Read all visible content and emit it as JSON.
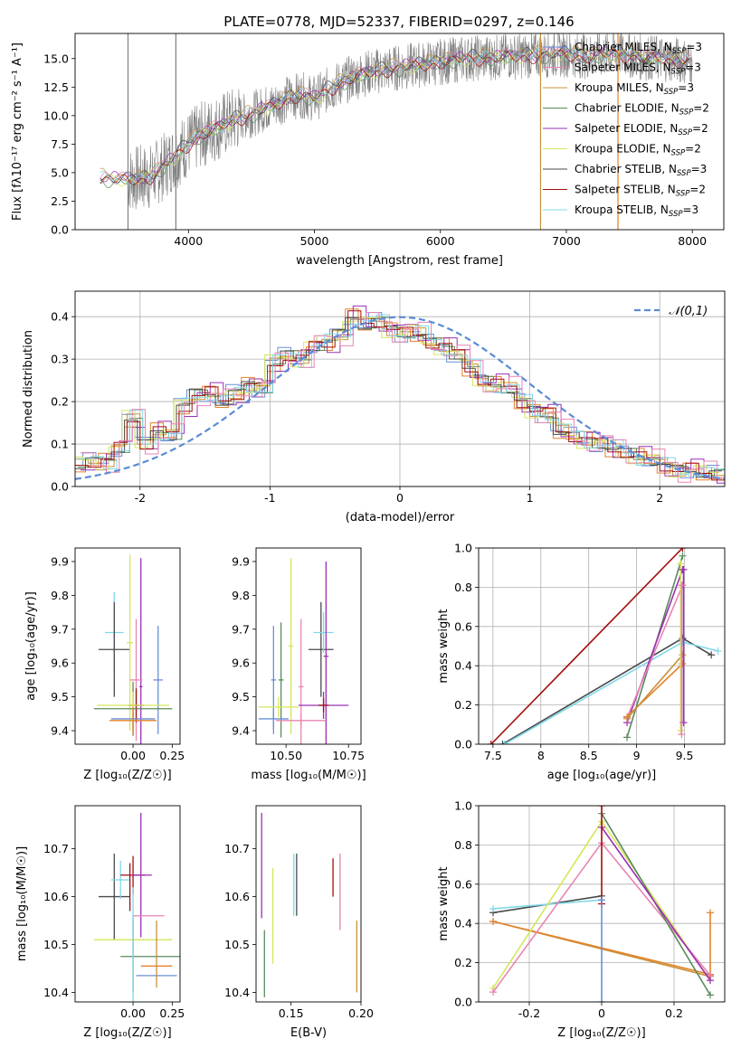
{
  "figure": {
    "title": "PLATE=0778, MJD=52337, FIBERID=0297, z=0.146"
  },
  "colors": {
    "Chabrier MILES": "#6a8fd6",
    "Salpeter MILES": "#e3822a",
    "Kroupa MILES": "#c8913b",
    "Chabrier ELODIE": "#5b8a5b",
    "Salpeter ELODIE": "#9a31b5",
    "Kroupa ELODIE": "#d6e65a",
    "Chabrier STELIB": "#4a4a4a",
    "Salpeter STELIB": "#a30e0e",
    "Kroupa STELIB": "#7fd8e8",
    "Salpeter MILES pink": "#e884b3",
    "Kroupa ELODIE light": "#c7ec6a",
    "data": "#808080",
    "normal": "#5b8bd6",
    "grid": "#b0b0b0"
  },
  "chart_data": [
    {
      "id": "spectrum",
      "type": "line",
      "xlabel": "wavelength [Angstrom, rest frame]",
      "ylabel": "Flux [f$_\\lambda$10$^{-17}$ erg cm$^{-2}$ s$^{-1}$ A$^{-1}$]",
      "ylabel_text": "Flux [fλ10⁻¹⁷ erg cm⁻² s⁻¹ A⁻¹]",
      "xlim": [
        3100,
        8250
      ],
      "ylim": [
        0,
        17.2
      ],
      "xticks": [
        4000,
        5000,
        6000,
        7000,
        8000
      ],
      "yticks": [
        0.0,
        2.5,
        5.0,
        7.5,
        10.0,
        12.5,
        15.0
      ],
      "legend": [
        {
          "name": "Chabrier MILES, N",
          "sub": "SSP",
          "tail": "=3",
          "color": "#6a8fd6"
        },
        {
          "name": "Salpeter MILES, N",
          "sub": "SSP",
          "tail": "=3",
          "color": "#e884b3"
        },
        {
          "name": "Kroupa MILES, N",
          "sub": "SSP",
          "tail": "=3",
          "color": "#c8913b"
        },
        {
          "name": "Chabrier ELODIE, N",
          "sub": "SSP",
          "tail": "=2",
          "color": "#5b8a5b"
        },
        {
          "name": "Salpeter ELODIE, N",
          "sub": "SSP",
          "tail": "=2",
          "color": "#9a31b5"
        },
        {
          "name": "Kroupa ELODIE, N",
          "sub": "SSP",
          "tail": "=2",
          "color": "#d6e65a"
        },
        {
          "name": "Chabrier STELIB, N",
          "sub": "SSP",
          "tail": "=3",
          "color": "#4a4a4a"
        },
        {
          "name": "Salpeter STELIB, N",
          "sub": "SSP",
          "tail": "=2",
          "color": "#a30e0e"
        },
        {
          "name": "Kroupa STELIB, N",
          "sub": "SSP",
          "tail": "=3",
          "color": "#7fd8e8"
        }
      ],
      "legend_placement": "top-right",
      "model_continuum": {
        "x": [
          3300,
          3500,
          3700,
          3800,
          3900,
          4000,
          4100,
          4200,
          4300,
          4400,
          4500,
          4600,
          4700,
          4800,
          4900,
          5000,
          5100,
          5200,
          5300,
          5400,
          5600,
          5800,
          6000,
          6200,
          6400,
          6600,
          6800,
          7000,
          7200,
          7400,
          7600,
          7800,
          8000
        ],
        "y": [
          4.5,
          4.4,
          4.6,
          5.5,
          6.5,
          7.5,
          8.3,
          8.8,
          9.3,
          9.8,
          10.1,
          10.6,
          11.0,
          11.6,
          11.8,
          11.5,
          12.2,
          12.8,
          13.3,
          13.7,
          14.1,
          14.4,
          14.7,
          15.0,
          15.1,
          15.2,
          15.3,
          15.4,
          15.2,
          15.5,
          15.1,
          15.0,
          14.7
        ]
      },
      "noise_amplitude": 2.3,
      "model_offsets": [
        0.0,
        0.15,
        0.3,
        -0.2,
        0.1,
        -0.1,
        0.2,
        -0.15,
        0.05
      ],
      "gap_lines": [
        {
          "x": 3520,
          "color": "#808080"
        },
        {
          "x": 3900,
          "color": "#808080"
        },
        {
          "x": 6795,
          "color": "#c8913b"
        },
        {
          "x": 7410,
          "color": "#e3822a"
        }
      ]
    },
    {
      "id": "residuals",
      "type": "histogram",
      "xlabel": "(data-model)/error",
      "ylabel": "Normed distribution",
      "xlim": [
        -2.5,
        2.5
      ],
      "ylim": [
        0,
        0.46
      ],
      "xticks": [
        -2,
        -1,
        0,
        1,
        2
      ],
      "yticks": [
        0.0,
        0.1,
        0.2,
        0.3,
        0.4
      ],
      "grid": true,
      "legend_placement": "top-right",
      "normal_label": "𝒩(0,1)",
      "bin_edges_start": -2.5,
      "bin_width": 0.1,
      "base_series": [
        0.05,
        0.06,
        0.06,
        0.09,
        0.16,
        0.1,
        0.13,
        0.12,
        0.19,
        0.22,
        0.22,
        0.2,
        0.22,
        0.24,
        0.23,
        0.29,
        0.31,
        0.3,
        0.33,
        0.34,
        0.36,
        0.4,
        0.38,
        0.39,
        0.37,
        0.36,
        0.36,
        0.34,
        0.33,
        0.31,
        0.28,
        0.25,
        0.24,
        0.23,
        0.2,
        0.18,
        0.17,
        0.13,
        0.12,
        0.11,
        0.1,
        0.09,
        0.08,
        0.07,
        0.06,
        0.05,
        0.04,
        0.04,
        0.03,
        0.03
      ],
      "series_colors": [
        "#6a8fd6",
        "#e3822a",
        "#c8913b",
        "#5b8a5b",
        "#9a31b5",
        "#d6e65a",
        "#4a4a4a",
        "#a30e0e",
        "#7fd8e8",
        "#e884b3"
      ],
      "series_jitter": [
        0.02,
        -0.02,
        0.015,
        -0.01,
        0.025,
        -0.02,
        0.01,
        -0.015,
        0.02,
        0.03
      ]
    },
    {
      "id": "age-vs-Z",
      "type": "scatter",
      "xlabel": "Z [log₁₀(Z/Z☉)]",
      "ylabel": "age  [log₁₀(age/yr)]",
      "xlim": [
        -0.37,
        0.3
      ],
      "ylim": [
        9.36,
        9.94
      ],
      "xticks": [
        0.0,
        0.25
      ],
      "xticklabels": [
        "0.00",
        "0.25"
      ],
      "yticks": [
        9.4,
        9.5,
        9.6,
        9.7,
        9.8,
        9.9
      ],
      "points": [
        {
          "x": -0.12,
          "y": 9.69,
          "xerr": 0.06,
          "yerr": 0.12,
          "color": "#7fd8e8"
        },
        {
          "x": -0.12,
          "y": 9.64,
          "xerr": 0.1,
          "yerr": 0.14,
          "color": "#4a4a4a"
        },
        {
          "x": -0.02,
          "y": 9.66,
          "xerr": 0.02,
          "yerr": 0.26,
          "color": "#d6e65a"
        },
        {
          "x": 0.05,
          "y": 9.53,
          "xerr": 0.01,
          "yerr": 0.38,
          "color": "#9a31b5"
        },
        {
          "x": 0.02,
          "y": 9.55,
          "xerr": 0.04,
          "yerr": 0.18,
          "color": "#e884b3"
        },
        {
          "x": 0.16,
          "y": 9.55,
          "xerr": 0.03,
          "yerr": 0.16,
          "color": "#6a8fd6"
        },
        {
          "x": 0.02,
          "y": 9.475,
          "xerr": 0.05,
          "yerr": 0.05,
          "color": "#a30e0e"
        },
        {
          "x": 0.0,
          "y": 9.465,
          "xerr": 0.25,
          "yerr": 0.08,
          "color": "#5b8a5b"
        },
        {
          "x": 0.0,
          "y": 9.475,
          "xerr": 0.23,
          "yerr": 0.04,
          "color": "#d6e65a"
        },
        {
          "x": 0.0,
          "y": 9.435,
          "xerr": 0.14,
          "yerr": 0.03,
          "color": "#6a8fd6"
        },
        {
          "x": 0.0,
          "y": 9.43,
          "xerr": 0.15,
          "yerr": 0.04,
          "color": "#e3822a"
        }
      ]
    },
    {
      "id": "age-vs-mass",
      "type": "scatter",
      "xlabel": "mass [log₁₀(M/M☉)]",
      "ylabel": "",
      "xlim": [
        10.38,
        10.8
      ],
      "ylim": [
        9.36,
        9.94
      ],
      "xticks": [
        10.5,
        10.75
      ],
      "xticklabels": [
        "10.50",
        "10.75"
      ],
      "yticks": [
        9.4,
        9.5,
        9.6,
        9.7,
        9.8,
        9.9
      ],
      "points": [
        {
          "x": 10.64,
          "y": 9.64,
          "xerr": 0.05,
          "yerr": 0.14,
          "color": "#4a4a4a"
        },
        {
          "x": 10.65,
          "y": 9.69,
          "xerr": 0.04,
          "yerr": 0.06,
          "color": "#7fd8e8"
        },
        {
          "x": 10.52,
          "y": 9.65,
          "xerr": 0.01,
          "yerr": 0.26,
          "color": "#d6e65a"
        },
        {
          "x": 10.66,
          "y": 9.62,
          "xerr": 0.01,
          "yerr": 0.28,
          "color": "#9a31b5"
        },
        {
          "x": 10.56,
          "y": 9.53,
          "xerr": 0.01,
          "yerr": 0.2,
          "color": "#e884b3"
        },
        {
          "x": 10.45,
          "y": 9.55,
          "xerr": 0.01,
          "yerr": 0.16,
          "color": "#6a8fd6"
        },
        {
          "x": 10.48,
          "y": 9.55,
          "xerr": 0.01,
          "yerr": 0.17,
          "color": "#5b8a5b"
        },
        {
          "x": 10.65,
          "y": 9.475,
          "xerr": 0.1,
          "yerr": 0.04,
          "color": "#9a31b5"
        },
        {
          "x": 10.65,
          "y": 9.475,
          "xerr": 0.02,
          "yerr": 0.02,
          "color": "#a30e0e"
        },
        {
          "x": 10.47,
          "y": 9.47,
          "xerr": 0.08,
          "yerr": 0.03,
          "color": "#d6e65a"
        },
        {
          "x": 10.45,
          "y": 9.435,
          "xerr": 0.06,
          "yerr": 0.03,
          "color": "#6a8fd6"
        },
        {
          "x": 10.56,
          "y": 9.43,
          "xerr": 0.1,
          "yerr": 0.02,
          "color": "#e884b3"
        }
      ]
    },
    {
      "id": "weight-vs-age",
      "type": "line",
      "xlabel": "age  [log₁₀(age/yr)]",
      "ylabel": "mass weight",
      "xlim": [
        7.35,
        9.92
      ],
      "ylim": [
        0,
        1.0
      ],
      "xticks": [
        7.5,
        8.0,
        8.5,
        9.0,
        9.5
      ],
      "yticks": [
        0.0,
        0.2,
        0.4,
        0.6,
        0.8,
        1.0
      ],
      "grid": true,
      "series": [
        {
          "color": "#a30e0e",
          "x": [
            7.48,
            9.48
          ],
          "y": [
            0.0,
            1.0
          ]
        },
        {
          "color": "#4a4a4a",
          "x": [
            7.6,
            9.48,
            9.78
          ],
          "y": [
            0.0,
            0.54,
            0.455
          ]
        },
        {
          "color": "#7fd8e8",
          "x": [
            7.62,
            9.48,
            9.85
          ],
          "y": [
            0.0,
            0.52,
            0.475
          ]
        },
        {
          "color": "#5b8a5b",
          "x": [
            8.9,
            9.48
          ],
          "y": [
            0.035,
            0.96
          ]
        },
        {
          "color": "#9a31b5",
          "x": [
            8.9,
            9.48
          ],
          "y": [
            0.11,
            0.89
          ]
        },
        {
          "color": "#e884b3",
          "x": [
            8.9,
            9.48
          ],
          "y": [
            0.135,
            0.81
          ]
        },
        {
          "color": "#e3822a",
          "x": [
            8.9,
            9.48
          ],
          "y": [
            0.14,
            0.41
          ]
        },
        {
          "color": "#c8913b",
          "x": [
            8.9,
            9.48
          ],
          "y": [
            0.13,
            0.455
          ]
        },
        {
          "color": "#d6e65a",
          "x": [
            9.46,
            9.46
          ],
          "y": [
            0.07,
            0.92
          ]
        },
        {
          "color": "#9a31b5",
          "x": [
            9.49,
            9.49
          ],
          "y": [
            0.11,
            0.89
          ]
        },
        {
          "color": "#e884b3",
          "x": [
            9.47,
            9.47
          ],
          "y": [
            0.05,
            0.81
          ]
        }
      ]
    },
    {
      "id": "mass-vs-Z",
      "type": "scatter",
      "xlabel": "Z [log₁₀(Z/Z☉)]",
      "ylabel": "mass [log₁₀(M/M☉)]",
      "xlim": [
        -0.37,
        0.3
      ],
      "ylim": [
        10.38,
        10.79
      ],
      "xticks": [
        0.0,
        0.25
      ],
      "xticklabels": [
        "0.00",
        "0.25"
      ],
      "yticks": [
        10.4,
        10.5,
        10.6,
        10.7
      ],
      "points": [
        {
          "x": -0.12,
          "y": 10.6,
          "xerr": 0.1,
          "yerr": 0.09,
          "color": "#4a4a4a"
        },
        {
          "x": -0.08,
          "y": 10.635,
          "xerr": 0.06,
          "yerr": 0.04,
          "color": "#7fd8e8"
        },
        {
          "x": 0.0,
          "y": 10.645,
          "xerr": 0.08,
          "yerr": 0.04,
          "color": "#a30e0e"
        },
        {
          "x": 0.05,
          "y": 10.645,
          "xerr": 0.07,
          "yerr": 0.13,
          "color": "#9a31b5"
        },
        {
          "x": 0.0,
          "y": 10.51,
          "xerr": 0.25,
          "yerr": 0.0,
          "color": "#d6e65a"
        },
        {
          "x": 0.1,
          "y": 10.56,
          "xerr": 0.1,
          "yerr": 0.0,
          "color": "#e884b3"
        },
        {
          "x": 0.14,
          "y": 10.475,
          "xerr": 0.22,
          "yerr": 0.0,
          "color": "#5b8a5b"
        },
        {
          "x": 0.15,
          "y": 10.455,
          "xerr": 0.1,
          "yerr": 0.0,
          "color": "#e3822a"
        },
        {
          "x": 0.15,
          "y": 10.435,
          "xerr": 0.13,
          "yerr": 0.0,
          "color": "#6a8fd6"
        },
        {
          "x": 0.15,
          "y": 10.48,
          "xerr": 0.0,
          "yerr": 0.07,
          "color": "#c8913b"
        },
        {
          "x": 0.0,
          "y": 10.48,
          "xerr": 0.0,
          "yerr": 0.08,
          "color": "#5b8a5b"
        },
        {
          "x": 0.0,
          "y": 10.49,
          "xerr": 0.0,
          "yerr": 0.13,
          "color": "#7fd8e8"
        },
        {
          "x": -0.02,
          "y": 10.62,
          "xerr": 0.0,
          "yerr": 0.05,
          "color": "#a30e0e"
        }
      ]
    },
    {
      "id": "mass-vs-ebv",
      "type": "scatter",
      "xlabel": "E(B-V)",
      "ylabel": "",
      "xlim": [
        0.125,
        0.2
      ],
      "ylim": [
        10.38,
        10.79
      ],
      "xticks": [
        0.15,
        0.2
      ],
      "xticklabels": [
        "0.15",
        "0.20"
      ],
      "yticks": [
        10.4,
        10.5,
        10.6,
        10.7
      ],
      "points": [
        {
          "x": 0.129,
          "y": 10.665,
          "xerr": 0.0,
          "yerr": 0.11,
          "color": "#9a31b5"
        },
        {
          "x": 0.131,
          "y": 10.46,
          "xerr": 0.0,
          "yerr": 0.07,
          "color": "#5b8a5b"
        },
        {
          "x": 0.137,
          "y": 10.56,
          "xerr": 0.0,
          "yerr": 0.1,
          "color": "#d6e65a"
        },
        {
          "x": 0.152,
          "y": 10.625,
          "xerr": 0.0,
          "yerr": 0.065,
          "color": "#7fd8e8"
        },
        {
          "x": 0.154,
          "y": 10.625,
          "xerr": 0.0,
          "yerr": 0.065,
          "color": "#4a4a4a"
        },
        {
          "x": 0.18,
          "y": 10.64,
          "xerr": 0.0,
          "yerr": 0.04,
          "color": "#a30e0e"
        },
        {
          "x": 0.185,
          "y": 10.61,
          "xerr": 0.0,
          "yerr": 0.08,
          "color": "#e884b3"
        },
        {
          "x": 0.197,
          "y": 10.475,
          "xerr": 0.0,
          "yerr": 0.075,
          "color": "#c8913b"
        }
      ]
    },
    {
      "id": "weight-vs-Z",
      "type": "line",
      "xlabel": "Z [log₁₀(Z/Z☉)]",
      "ylabel": "mass weight",
      "xlim": [
        -0.34,
        0.34
      ],
      "ylim": [
        0,
        1.0
      ],
      "xticks": [
        -0.2,
        0.0,
        0.2
      ],
      "yticks": [
        0.0,
        0.2,
        0.4,
        0.6,
        0.8,
        1.0
      ],
      "grid": true,
      "series": [
        {
          "color": "#4a4a4a",
          "x": [
            -0.3,
            0.0
          ],
          "y": [
            0.455,
            0.54
          ]
        },
        {
          "color": "#7fd8e8",
          "x": [
            -0.3,
            0.0
          ],
          "y": [
            0.475,
            0.52
          ]
        },
        {
          "color": "#c8913b",
          "x": [
            -0.3,
            0.3
          ],
          "y": [
            0.41,
            0.13
          ]
        },
        {
          "color": "#e3822a",
          "x": [
            -0.3,
            0.3,
            0.3
          ],
          "y": [
            0.41,
            0.14,
            0.455
          ]
        },
        {
          "color": "#d6e65a",
          "x": [
            -0.3,
            0.0,
            0.3
          ],
          "y": [
            0.07,
            0.92,
            0.11
          ]
        },
        {
          "color": "#e884b3",
          "x": [
            -0.3,
            0.0,
            0.3
          ],
          "y": [
            0.05,
            0.81,
            0.135
          ]
        },
        {
          "color": "#5b8a5b",
          "x": [
            0.0,
            0.3
          ],
          "y": [
            0.96,
            0.035
          ]
        },
        {
          "color": "#9a31b5",
          "x": [
            0.0,
            0.3
          ],
          "y": [
            0.89,
            0.11
          ]
        },
        {
          "color": "#a30e0e",
          "x": [
            0.0,
            0.0
          ],
          "y": [
            0.5,
            1.0
          ]
        },
        {
          "color": "#6a8fd6",
          "x": [
            0.0,
            0.0
          ],
          "y": [
            0.0,
            0.52
          ]
        }
      ]
    }
  ]
}
